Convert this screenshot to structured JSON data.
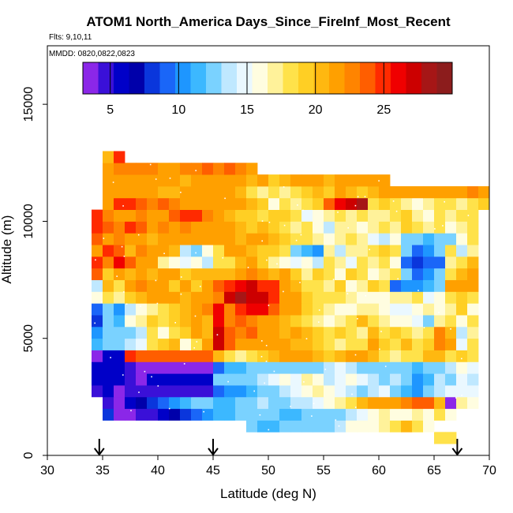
{
  "chart_data": {
    "type": "heatmap",
    "title": "ATOM1 North_America Days_Since_FireInf_Most_Recent",
    "flights_label": "Flts: 9,10,11",
    "dates_label": "MMDD: 0820,0822,0823",
    "xlabel": "Latitude (deg N)",
    "ylabel": "Altitude (m)",
    "xlim": [
      30,
      70
    ],
    "ylim": [
      0,
      17500
    ],
    "x_ticks": [
      30,
      35,
      40,
      45,
      50,
      55,
      60,
      65,
      70
    ],
    "y_ticks": [
      0,
      5000,
      10000,
      15000
    ],
    "colorbar": {
      "range": [
        3,
        30
      ],
      "ticks": [
        5,
        10,
        15,
        20,
        25
      ],
      "colors": [
        "#8b27e8",
        "#3a10d8",
        "#0000c8",
        "#0000aa",
        "#0a36dc",
        "#1a66f8",
        "#1e96ff",
        "#3cb8ff",
        "#7ad2ff",
        "#bfe8ff",
        "#eaf8ff",
        "#fffde0",
        "#fff29a",
        "#ffe24a",
        "#ffcf24",
        "#ffb810",
        "#ffa000",
        "#ff8400",
        "#ff5e00",
        "#ff2a00",
        "#f00000",
        "#cc0000",
        "#a61616",
        "#8c1c1c"
      ]
    },
    "arrow_latitudes": [
      34.7,
      45.0,
      67.1
    ],
    "grid": {
      "lat_start": 34,
      "lat_step": 1,
      "alt_step": 500,
      "rows": [
        {
          "alt": 500,
          "lat_from": 65,
          "values": [
            18,
            18
          ]
        },
        {
          "alt": 1000,
          "lat_from": 48,
          "values": [
            12,
            11,
            11,
            12,
            13,
            12,
            12,
            13,
            14,
            16,
            16,
            16,
            17,
            18,
            20,
            18,
            16
          ]
        },
        {
          "alt": 1500,
          "lat_from": 35,
          "values": [
            8,
            4,
            4,
            5,
            5,
            6,
            7,
            8,
            9,
            10,
            11,
            11,
            12,
            12,
            13,
            12,
            11,
            11,
            12,
            12,
            13,
            13,
            14,
            15,
            16,
            17,
            16,
            16,
            17,
            16,
            18,
            16
          ]
        },
        {
          "alt": 2000,
          "lat_from": 35,
          "values": [
            5,
            4,
            6,
            7,
            8,
            9,
            10,
            11,
            12,
            13,
            11,
            11,
            12,
            12,
            14,
            12,
            13,
            14,
            14,
            15,
            16,
            17,
            18,
            20,
            21,
            22,
            22,
            23,
            24,
            24,
            20,
            3,
            17,
            16
          ]
        },
        {
          "alt": 2500,
          "lat_from": 34,
          "values": [
            5,
            6,
            3,
            5,
            5,
            5,
            5,
            5,
            5,
            5,
            5,
            9,
            10,
            10,
            11,
            12,
            13,
            14,
            15,
            16,
            17,
            16,
            15,
            14,
            13,
            14,
            15,
            12,
            11,
            10,
            12,
            14,
            15,
            15,
            15
          ]
        },
        {
          "alt": 3000,
          "lat_from": 34,
          "values": [
            6,
            6,
            6,
            5,
            4,
            6,
            6,
            6,
            6,
            6,
            6,
            12,
            12,
            13,
            13,
            14,
            15,
            16,
            15,
            17,
            16,
            14,
            15,
            16,
            15,
            14,
            12,
            14,
            12,
            10,
            11,
            14,
            12,
            15,
            14
          ]
        },
        {
          "alt": 3500,
          "lat_from": 34,
          "values": [
            6,
            6,
            6,
            5,
            4,
            4,
            4,
            4,
            4,
            4,
            4,
            9,
            11,
            11,
            12,
            12,
            13,
            13,
            12,
            12,
            13,
            14,
            15,
            14,
            13,
            12,
            12,
            12,
            12,
            11,
            12,
            13,
            14,
            16,
            15
          ]
        },
        {
          "alt": 4000,
          "lat_from": 34,
          "values": [
            4,
            6,
            6,
            25,
            24,
            24,
            24,
            24,
            24,
            24,
            24,
            20,
            18,
            17,
            18,
            19,
            20,
            21,
            21,
            22,
            20,
            19,
            20,
            22,
            22,
            20,
            18,
            17,
            18,
            18,
            20,
            20,
            18,
            19,
            18
          ]
        },
        {
          "alt": 4500,
          "lat_from": 34,
          "values": [
            11,
            12,
            12,
            14,
            15,
            18,
            19,
            20,
            16,
            18,
            21,
            27,
            24,
            22,
            21,
            22,
            22,
            21,
            20,
            20,
            19,
            18,
            17,
            18,
            18,
            21,
            19,
            18,
            20,
            18,
            19,
            23,
            21,
            15,
            18
          ]
        },
        {
          "alt": 5000,
          "lat_from": 34,
          "values": [
            10,
            12,
            13,
            12,
            14,
            18,
            16,
            18,
            19,
            21,
            20,
            27,
            24,
            23,
            24,
            22,
            21,
            20,
            21,
            20,
            19,
            18,
            19,
            18,
            17,
            20,
            18,
            19,
            18,
            17,
            18,
            23,
            20,
            14,
            17
          ]
        },
        {
          "alt": 5500,
          "lat_from": 34,
          "values": [
            8,
            12,
            11,
            16,
            17,
            19,
            18,
            19,
            20,
            22,
            20,
            26,
            23,
            24,
            23,
            22,
            21,
            20,
            19,
            18,
            17,
            16,
            17,
            18,
            20,
            18,
            17,
            16,
            16,
            15,
            13,
            17,
            18,
            16,
            18
          ]
        },
        {
          "alt": 6000,
          "lat_from": 34,
          "values": [
            9,
            12,
            10,
            14,
            16,
            17,
            18,
            19,
            20,
            21,
            23,
            26,
            23,
            25,
            26,
            26,
            24,
            22,
            21,
            19,
            18,
            17,
            16,
            16,
            17,
            17,
            16,
            15,
            15,
            16,
            17,
            16,
            17,
            19,
            16
          ]
        },
        {
          "alt": 6500,
          "lat_from": 34,
          "values": [
            16,
            18,
            17,
            19,
            20,
            22,
            21,
            22,
            20,
            21,
            22,
            23,
            27,
            28,
            27,
            27,
            25,
            22,
            21,
            19,
            18,
            18,
            18,
            17,
            16,
            16,
            16,
            17,
            17,
            18,
            15,
            16,
            18,
            19,
            18
          ]
        },
        {
          "alt": 7000,
          "lat_from": 34,
          "values": [
            14,
            20,
            18,
            22,
            23,
            21,
            21,
            19,
            21,
            19,
            21,
            24,
            25,
            26,
            27,
            25,
            25,
            22,
            20,
            18,
            18,
            17,
            19,
            16,
            17,
            19,
            18,
            9,
            10,
            10,
            11,
            13,
            21,
            22,
            22
          ]
        },
        {
          "alt": 7500,
          "lat_from": 34,
          "values": [
            24,
            19,
            21,
            20,
            21,
            20,
            21,
            21,
            19,
            20,
            20,
            20,
            20,
            22,
            23,
            22,
            20,
            21,
            19,
            17,
            19,
            18,
            16,
            19,
            18,
            16,
            17,
            18,
            12,
            9,
            10,
            12,
            18,
            20,
            21
          ]
        },
        {
          "alt": 8000,
          "lat_from": 34,
          "values": [
            25,
            23,
            26,
            24,
            22,
            21,
            17,
            16,
            15,
            16,
            14,
            18,
            18,
            20,
            21,
            19,
            17,
            16,
            15,
            16,
            14,
            18,
            17,
            15,
            18,
            17,
            18,
            16,
            9,
            8,
            9,
            9,
            17,
            18,
            20
          ]
        },
        {
          "alt": 8500,
          "lat_from": 34,
          "values": [
            22,
            25,
            24,
            20,
            23,
            22,
            22,
            20,
            14,
            12,
            16,
            18,
            21,
            22,
            20,
            19,
            19,
            18,
            12,
            11,
            10,
            17,
            14,
            17,
            17,
            18,
            19,
            18,
            13,
            9,
            10,
            12,
            18,
            14,
            17
          ]
        },
        {
          "alt": 9000,
          "lat_from": 34,
          "values": [
            24,
            22,
            23,
            21,
            22,
            20,
            21,
            22,
            21,
            22,
            21,
            22,
            21,
            20,
            21,
            21,
            20,
            19,
            18,
            18,
            17,
            16,
            17,
            18,
            17,
            15,
            14,
            16,
            13,
            12,
            11,
            12,
            13,
            16,
            18
          ]
        },
        {
          "alt": 9500,
          "lat_from": 34,
          "values": [
            25,
            24,
            23,
            25,
            24,
            22,
            23,
            22,
            23,
            22,
            21,
            22,
            21,
            20,
            19,
            20,
            19,
            18,
            17,
            18,
            16,
            14,
            17,
            17,
            16,
            17,
            18,
            17,
            19,
            18,
            17,
            18,
            16,
            17,
            18
          ]
        },
        {
          "alt": 10000,
          "lat_from": 34,
          "values": [
            25,
            23,
            22,
            22,
            23,
            21,
            22,
            24,
            25,
            25,
            23,
            22,
            20,
            19,
            19,
            18,
            19,
            19,
            18,
            15,
            16,
            17,
            18,
            17,
            18,
            17,
            17,
            18,
            19,
            17,
            16,
            18,
            17,
            18,
            18
          ]
        },
        {
          "alt": 10500,
          "lat_from": 35,
          "values": [
            22,
            25,
            25,
            24,
            23,
            24,
            23,
            22,
            21,
            21,
            22,
            22,
            21,
            20,
            19,
            16,
            18,
            17,
            18,
            19,
            24,
            26,
            27,
            28,
            18,
            19,
            18,
            17,
            16,
            17,
            18,
            18,
            17,
            18,
            19
          ]
        },
        {
          "alt": 11000,
          "lat_from": 35,
          "values": [
            21,
            22,
            21,
            22,
            21,
            20,
            20,
            21,
            22,
            21,
            22,
            21,
            20,
            18,
            17,
            18,
            17,
            18,
            19,
            20,
            19,
            21,
            20,
            19,
            20,
            21,
            22,
            21,
            22,
            21,
            21,
            22,
            22,
            23,
            22
          ]
        },
        {
          "alt": 11500,
          "lat_from": 35,
          "values": [
            21,
            22,
            22,
            22,
            21,
            21,
            21,
            20,
            21,
            22,
            21,
            21,
            21,
            20,
            21,
            19,
            20,
            21,
            22,
            21,
            20,
            21,
            22,
            22,
            21,
            22
          ]
        },
        {
          "alt": 12000,
          "lat_from": 35,
          "values": [
            21,
            23,
            23,
            23,
            23,
            22,
            22,
            23,
            23,
            24,
            23,
            24,
            23,
            22
          ]
        },
        {
          "alt": 12500,
          "lat_from": 35,
          "values": [
            20,
            25
          ]
        }
      ]
    }
  }
}
